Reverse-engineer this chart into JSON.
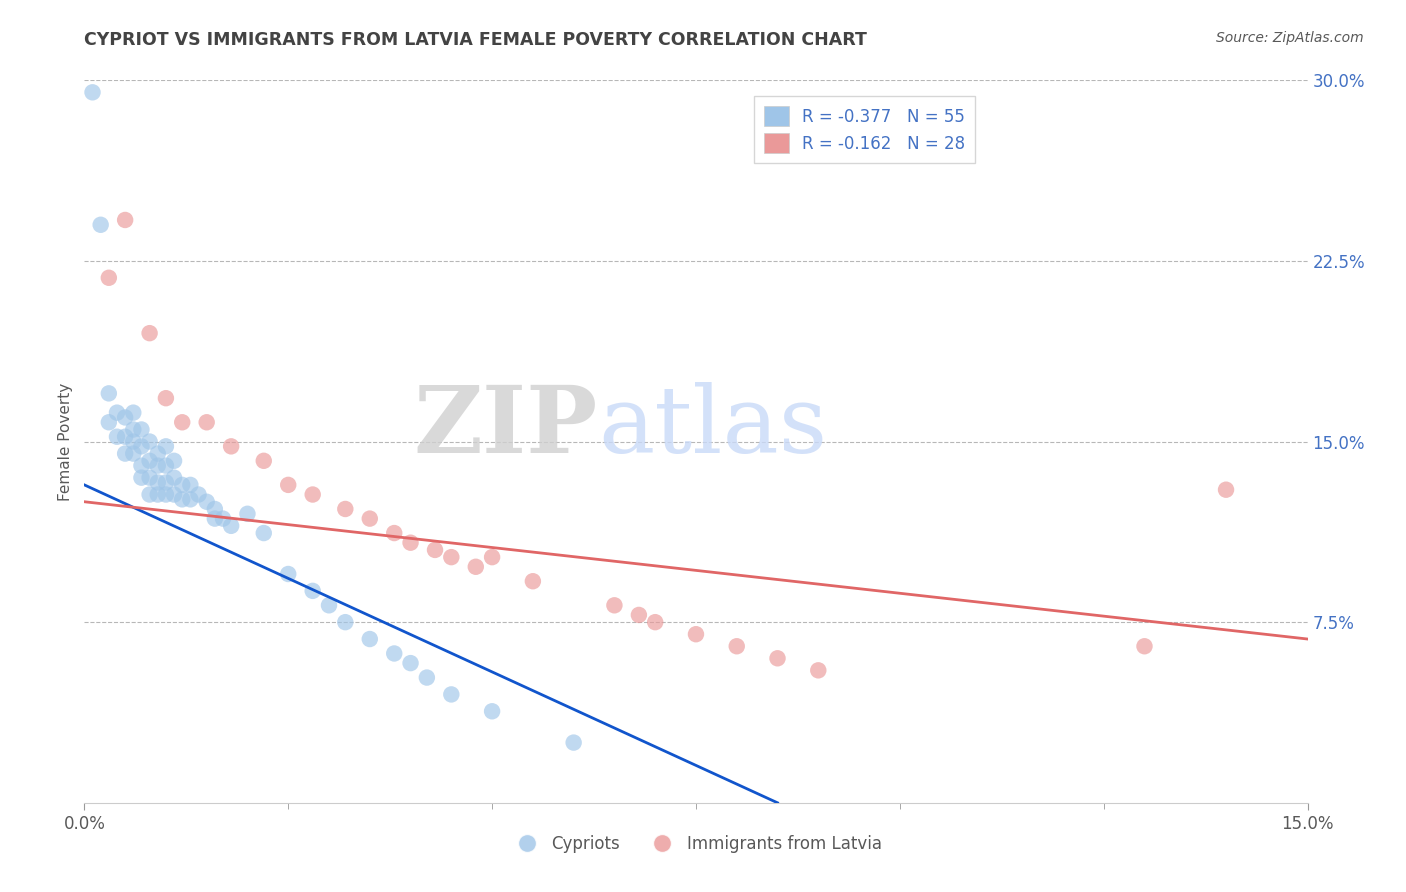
{
  "title": "CYPRIOT VS IMMIGRANTS FROM LATVIA FEMALE POVERTY CORRELATION CHART",
  "source": "Source: ZipAtlas.com",
  "ylabel": "Female Poverty",
  "xlim": [
    0.0,
    0.15
  ],
  "ylim": [
    0.0,
    0.3
  ],
  "xtick_vals": [
    0.0,
    0.15
  ],
  "xtick_labels": [
    "0.0%",
    "15.0%"
  ],
  "ytick_labels_right": [
    "7.5%",
    "15.0%",
    "22.5%",
    "30.0%"
  ],
  "ytick_vals_right": [
    0.075,
    0.15,
    0.225,
    0.3
  ],
  "legend1_label": "R = -0.377   N = 55",
  "legend2_label": "R = -0.162   N = 28",
  "legend_bottom1": "Cypriots",
  "legend_bottom2": "Immigrants from Latvia",
  "blue_color": "#9fc5e8",
  "pink_color": "#ea9999",
  "blue_line_color": "#1155cc",
  "pink_line_color": "#e06666",
  "title_color": "#434343",
  "axis_label_color": "#595959",
  "tick_color_right": "#4472c4",
  "grid_color": "#b7b7b7",
  "background_color": "#ffffff",
  "blue_scatter_x": [
    0.001,
    0.002,
    0.003,
    0.003,
    0.004,
    0.004,
    0.005,
    0.005,
    0.005,
    0.006,
    0.006,
    0.006,
    0.006,
    0.007,
    0.007,
    0.007,
    0.007,
    0.008,
    0.008,
    0.008,
    0.008,
    0.009,
    0.009,
    0.009,
    0.009,
    0.01,
    0.01,
    0.01,
    0.01,
    0.011,
    0.011,
    0.011,
    0.012,
    0.012,
    0.013,
    0.013,
    0.014,
    0.015,
    0.016,
    0.016,
    0.017,
    0.018,
    0.02,
    0.022,
    0.025,
    0.028,
    0.03,
    0.032,
    0.035,
    0.038,
    0.04,
    0.042,
    0.045,
    0.05,
    0.06
  ],
  "blue_scatter_y": [
    0.295,
    0.24,
    0.17,
    0.158,
    0.162,
    0.152,
    0.16,
    0.152,
    0.145,
    0.162,
    0.155,
    0.15,
    0.145,
    0.155,
    0.148,
    0.14,
    0.135,
    0.15,
    0.142,
    0.135,
    0.128,
    0.145,
    0.14,
    0.133,
    0.128,
    0.148,
    0.14,
    0.133,
    0.128,
    0.142,
    0.135,
    0.128,
    0.132,
    0.126,
    0.132,
    0.126,
    0.128,
    0.125,
    0.122,
    0.118,
    0.118,
    0.115,
    0.12,
    0.112,
    0.095,
    0.088,
    0.082,
    0.075,
    0.068,
    0.062,
    0.058,
    0.052,
    0.045,
    0.038,
    0.025
  ],
  "pink_scatter_x": [
    0.003,
    0.005,
    0.008,
    0.01,
    0.012,
    0.015,
    0.018,
    0.022,
    0.025,
    0.028,
    0.032,
    0.035,
    0.038,
    0.04,
    0.043,
    0.045,
    0.048,
    0.05,
    0.055,
    0.065,
    0.068,
    0.07,
    0.075,
    0.08,
    0.085,
    0.09,
    0.13,
    0.14
  ],
  "pink_scatter_y": [
    0.218,
    0.242,
    0.195,
    0.168,
    0.158,
    0.158,
    0.148,
    0.142,
    0.132,
    0.128,
    0.122,
    0.118,
    0.112,
    0.108,
    0.105,
    0.102,
    0.098,
    0.102,
    0.092,
    0.082,
    0.078,
    0.075,
    0.07,
    0.065,
    0.06,
    0.055,
    0.065,
    0.13
  ],
  "blue_trendline_x": [
    0.0,
    0.085
  ],
  "blue_trendline_y": [
    0.132,
    0.0
  ],
  "pink_trendline_x": [
    0.0,
    0.15
  ],
  "pink_trendline_y": [
    0.125,
    0.068
  ]
}
